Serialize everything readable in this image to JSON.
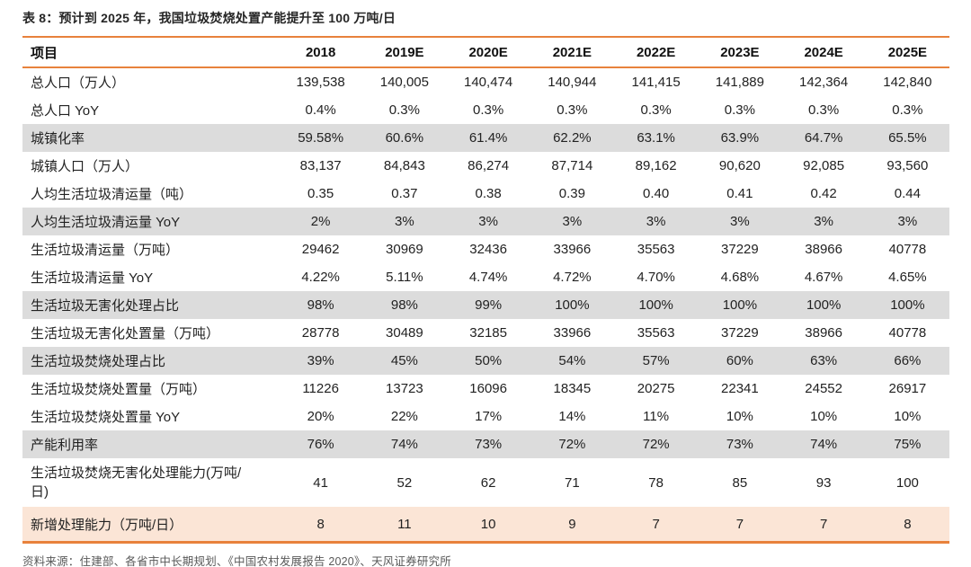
{
  "colors": {
    "accent_orange": "#E8823C",
    "row_gray": "#DCDCDC",
    "row_peach": "#FBE5D6",
    "title_text": "#262626",
    "body_text": "#222222",
    "source_text": "#595959"
  },
  "table": {
    "title": "表 8：预计到 2025 年，我国垃圾焚烧处置产能提升至 100 万吨/日",
    "columns": [
      "项目",
      "2018",
      "2019E",
      "2020E",
      "2021E",
      "2022E",
      "2023E",
      "2024E",
      "2025E"
    ],
    "rows": [
      {
        "label": "总人口（万人）",
        "values": [
          "139,538",
          "140,005",
          "140,474",
          "140,944",
          "141,415",
          "141,889",
          "142,364",
          "142,840"
        ],
        "bg": "plain",
        "tall": false
      },
      {
        "label": "总人口 YoY",
        "values": [
          "0.4%",
          "0.3%",
          "0.3%",
          "0.3%",
          "0.3%",
          "0.3%",
          "0.3%",
          "0.3%"
        ],
        "bg": "plain",
        "tall": false
      },
      {
        "label": "城镇化率",
        "values": [
          "59.58%",
          "60.6%",
          "61.4%",
          "62.2%",
          "63.1%",
          "63.9%",
          "64.7%",
          "65.5%"
        ],
        "bg": "gray",
        "tall": false
      },
      {
        "label": "城镇人口（万人）",
        "values": [
          "83,137",
          "84,843",
          "86,274",
          "87,714",
          "89,162",
          "90,620",
          "92,085",
          "93,560"
        ],
        "bg": "plain",
        "tall": false
      },
      {
        "label": "人均生活垃圾清运量（吨）",
        "values": [
          "0.35",
          "0.37",
          "0.38",
          "0.39",
          "0.40",
          "0.41",
          "0.42",
          "0.44"
        ],
        "bg": "plain",
        "tall": false
      },
      {
        "label": "人均生活垃圾清运量  YoY",
        "values": [
          "2%",
          "3%",
          "3%",
          "3%",
          "3%",
          "3%",
          "3%",
          "3%"
        ],
        "bg": "gray",
        "tall": false
      },
      {
        "label": "生活垃圾清运量（万吨）",
        "values": [
          "29462",
          "30969",
          "32436",
          "33966",
          "35563",
          "37229",
          "38966",
          "40778"
        ],
        "bg": "plain",
        "tall": false
      },
      {
        "label": "生活垃圾清运量 YoY",
        "values": [
          "4.22%",
          "5.11%",
          "4.74%",
          "4.72%",
          "4.70%",
          "4.68%",
          "4.67%",
          "4.65%"
        ],
        "bg": "plain",
        "tall": false
      },
      {
        "label": "生活垃圾无害化处理占比",
        "values": [
          "98%",
          "98%",
          "99%",
          "100%",
          "100%",
          "100%",
          "100%",
          "100%"
        ],
        "bg": "gray",
        "tall": false
      },
      {
        "label": "生活垃圾无害化处置量（万吨）",
        "values": [
          "28778",
          "30489",
          "32185",
          "33966",
          "35563",
          "37229",
          "38966",
          "40778"
        ],
        "bg": "plain",
        "tall": false
      },
      {
        "label": "生活垃圾焚烧处理占比",
        "values": [
          "39%",
          "45%",
          "50%",
          "54%",
          "57%",
          "60%",
          "63%",
          "66%"
        ],
        "bg": "gray",
        "tall": false
      },
      {
        "label": "生活垃圾焚烧处置量（万吨）",
        "values": [
          "11226",
          "13723",
          "16096",
          "18345",
          "20275",
          "22341",
          "24552",
          "26917"
        ],
        "bg": "plain",
        "tall": false
      },
      {
        "label": "生活垃圾焚烧处置量 YoY",
        "values": [
          "20%",
          "22%",
          "17%",
          "14%",
          "11%",
          "10%",
          "10%",
          "10%"
        ],
        "bg": "plain",
        "tall": false
      },
      {
        "label": "产能利用率",
        "values": [
          "76%",
          "74%",
          "73%",
          "72%",
          "72%",
          "73%",
          "74%",
          "75%"
        ],
        "bg": "gray",
        "tall": false
      },
      {
        "label": "生活垃圾焚烧无害化处理能力(万吨/日)",
        "values": [
          "41",
          "52",
          "62",
          "71",
          "78",
          "85",
          "93",
          "100"
        ],
        "bg": "plain",
        "tall": true
      },
      {
        "label": "新增处理能力（万吨/日）",
        "values": [
          "8",
          "11",
          "10",
          "9",
          "7",
          "7",
          "7",
          "8"
        ],
        "bg": "peach",
        "tall": false
      }
    ],
    "source": "资料来源：住建部、各省市中长期规划、《中国农村发展报告 2020》、天风证券研究所"
  }
}
